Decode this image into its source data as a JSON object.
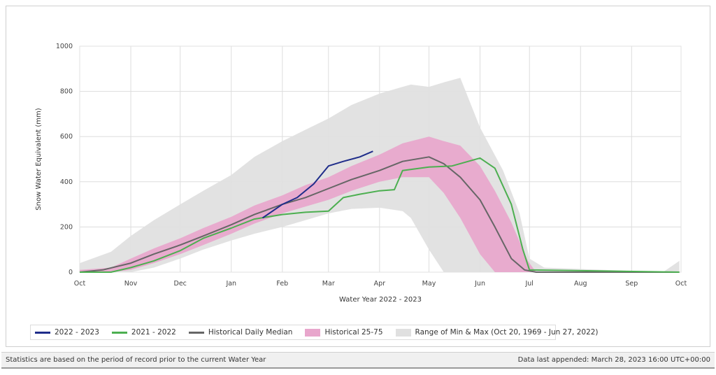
{
  "chart_data": {
    "type": "area",
    "xlabel": "Water Year 2022 - 2023",
    "ylabel": "Snow Water Equivalent (mm)",
    "ylim": [
      0,
      1000
    ],
    "yticks": [
      0,
      200,
      400,
      600,
      800,
      1000
    ],
    "grid": true,
    "legend_position": "bottom",
    "x_ticks": [
      "Oct",
      "Nov",
      "Dec",
      "Jan",
      "Feb",
      "Mar",
      "Apr",
      "May",
      "Jun",
      "Jul",
      "Aug",
      "Sep",
      "Oct"
    ],
    "series": [
      {
        "name": "2022 - 2023",
        "kind": "line",
        "color": "#1f2d8a",
        "x": [
          "2022-01-20",
          "2022-02-01",
          "2022-02-10",
          "2022-02-20",
          "2022-03-01",
          "2022-03-10",
          "2022-03-20",
          "2022-03-28"
        ],
        "y": [
          240,
          300,
          330,
          390,
          470,
          490,
          510,
          535
        ]
      },
      {
        "name": "2021 - 2022",
        "kind": "line",
        "color": "#4caf50",
        "x": [
          "2021-10-01",
          "2021-10-20",
          "2021-11-01",
          "2021-11-15",
          "2021-12-01",
          "2021-12-15",
          "2022-01-01",
          "2022-01-15",
          "2022-02-01",
          "2022-02-15",
          "2022-03-01",
          "2022-03-10",
          "2022-03-20",
          "2022-04-01",
          "2022-04-10",
          "2022-04-15",
          "2022-05-01",
          "2022-05-15",
          "2022-06-01",
          "2022-06-10",
          "2022-06-20",
          "2022-06-27",
          "2022-07-01",
          "2022-09-30"
        ],
        "y": [
          0,
          0,
          20,
          50,
          95,
          150,
          195,
          235,
          255,
          265,
          270,
          330,
          345,
          360,
          365,
          450,
          465,
          470,
          505,
          460,
          300,
          100,
          10,
          0
        ]
      },
      {
        "name": "Historical Daily Median",
        "kind": "line",
        "color": "#666666",
        "x": [
          "2021-10-01",
          "2021-10-15",
          "2021-11-01",
          "2021-11-15",
          "2021-12-01",
          "2021-12-15",
          "2022-01-01",
          "2022-01-15",
          "2022-02-01",
          "2022-02-15",
          "2022-03-01",
          "2022-03-15",
          "2022-04-01",
          "2022-04-15",
          "2022-05-01",
          "2022-05-10",
          "2022-05-20",
          "2022-06-01",
          "2022-06-10",
          "2022-06-20",
          "2022-06-28",
          "2022-07-05",
          "2022-09-30"
        ],
        "y": [
          0,
          10,
          40,
          80,
          120,
          160,
          210,
          255,
          300,
          330,
          370,
          410,
          450,
          490,
          510,
          480,
          420,
          320,
          200,
          60,
          10,
          0,
          0
        ]
      },
      {
        "name": "Historical 25-75",
        "kind": "band",
        "color": "#e8a6cc",
        "x": [
          "2021-10-01",
          "2021-10-20",
          "2021-11-01",
          "2021-11-15",
          "2021-12-01",
          "2021-12-15",
          "2022-01-01",
          "2022-01-15",
          "2022-02-01",
          "2022-02-15",
          "2022-03-01",
          "2022-03-15",
          "2022-04-01",
          "2022-04-15",
          "2022-05-01",
          "2022-05-10",
          "2022-05-20",
          "2022-06-01",
          "2022-06-10",
          "2022-06-20",
          "2022-06-30",
          "2022-07-05",
          "2022-09-30"
        ],
        "low": [
          0,
          0,
          10,
          40,
          80,
          120,
          170,
          215,
          260,
          290,
          320,
          360,
          400,
          420,
          420,
          350,
          240,
          80,
          0,
          0,
          0,
          0,
          0
        ],
        "high": [
          10,
          20,
          60,
          105,
          150,
          195,
          245,
          295,
          340,
          385,
          420,
          470,
          520,
          570,
          600,
          580,
          560,
          470,
          360,
          220,
          50,
          0,
          0
        ]
      },
      {
        "name": "Range of Min & Max (Oct 20, 1969 - Jun 27, 2022)",
        "kind": "band",
        "color": "#e0e0e0",
        "x": [
          "2021-10-01",
          "2021-10-20",
          "2021-11-01",
          "2021-11-15",
          "2021-12-01",
          "2021-12-15",
          "2022-01-01",
          "2022-01-15",
          "2022-02-01",
          "2022-02-15",
          "2022-03-01",
          "2022-03-15",
          "2022-04-01",
          "2022-04-15",
          "2022-04-20",
          "2022-05-01",
          "2022-05-10",
          "2022-05-20",
          "2022-06-01",
          "2022-06-15",
          "2022-06-25",
          "2022-07-01",
          "2022-07-10",
          "2022-09-20",
          "2022-09-30"
        ],
        "low": [
          0,
          0,
          0,
          20,
          60,
          100,
          140,
          170,
          200,
          230,
          260,
          280,
          285,
          270,
          240,
          100,
          0,
          0,
          0,
          0,
          0,
          0,
          0,
          0,
          0
        ],
        "high": [
          40,
          90,
          160,
          230,
          300,
          360,
          430,
          510,
          580,
          630,
          680,
          740,
          790,
          820,
          830,
          820,
          840,
          860,
          640,
          450,
          260,
          60,
          20,
          0,
          50
        ]
      }
    ]
  },
  "legend": {
    "items": [
      {
        "label": "2022 - 2023",
        "kind": "line",
        "color": "#1f2d8a"
      },
      {
        "label": "2021 - 2022",
        "kind": "line",
        "color": "#4caf50"
      },
      {
        "label": "Historical Daily Median",
        "kind": "line",
        "color": "#666666"
      },
      {
        "label": "Historical 25-75",
        "kind": "box",
        "color": "#e8a6cc"
      },
      {
        "label": "Range of Min & Max (Oct 20, 1969 - Jun 27, 2022)",
        "kind": "box",
        "color": "#e0e0e0"
      }
    ]
  },
  "footer": {
    "left_text": "Statistics are based on the period of record prior to the current Water Year",
    "right_text": "Data last appended: March 28, 2023 16:00 UTC+00:00"
  }
}
